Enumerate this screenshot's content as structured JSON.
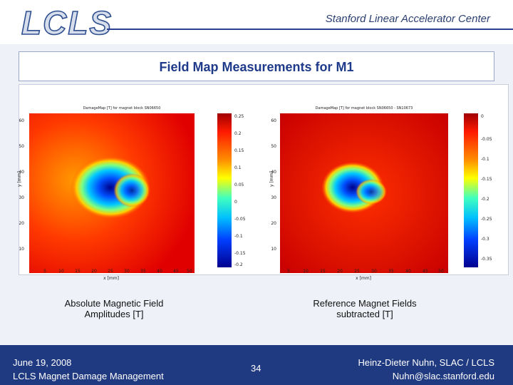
{
  "header": {
    "logo_text": "LCLS",
    "organization": "Stanford Linear Accelerator Center"
  },
  "slide": {
    "title": "Field Map Measurements for M1"
  },
  "plots": [
    {
      "title": "DamageMap [T] for magnet block SN06650",
      "xlabel": "x [mm]",
      "ylabel": "y [mm]",
      "x_ticks": [
        "5",
        "10",
        "15",
        "20",
        "25",
        "30",
        "35",
        "40",
        "45",
        "50"
      ],
      "y_ticks": [
        "60",
        "50",
        "40",
        "30",
        "20",
        "10"
      ],
      "colorbar_ticks": [
        "0.25",
        "0.2",
        "0.15",
        "0.1",
        "0.05",
        "0",
        "-0.05",
        "-0.1",
        "-0.15",
        "-0.2"
      ],
      "caption_line1": "Absolute Magnetic Field",
      "caption_line2": "Amplitudes [T]"
    },
    {
      "title": "DamageMap [T] for magnet block SN06650 - SN10673",
      "xlabel": "x [mm]",
      "ylabel": "y [mm]",
      "x_ticks": [
        "5",
        "10",
        "15",
        "20",
        "25",
        "30",
        "35",
        "40",
        "45",
        "50"
      ],
      "y_ticks": [
        "60",
        "50",
        "40",
        "30",
        "20",
        "10"
      ],
      "colorbar_ticks": [
        "0",
        "-0.05",
        "-0.1",
        "-0.15",
        "-0.2",
        "-0.25",
        "-0.3",
        "-0.35"
      ],
      "caption_line1": "Reference Magnet Fields",
      "caption_line2": "subtracted [T]"
    }
  ],
  "footer": {
    "date": "June 19, 2008",
    "project": "LCLS Magnet Damage Management",
    "page_number": "34",
    "author": "Heinz-Dieter Nuhn, SLAC / LCLS",
    "email": "Nuhn@slac.stanford.edu"
  },
  "colors": {
    "accent": "#1f3a80",
    "title_text": "#1f3a8a"
  }
}
